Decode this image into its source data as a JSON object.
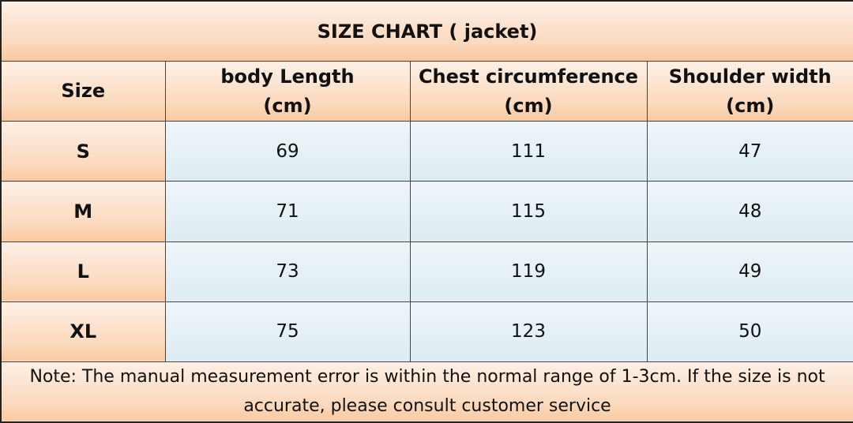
{
  "title": "SIZE CHART ( jacket)",
  "table": {
    "header": [
      {
        "name": "Size"
      },
      {
        "name": "body Length",
        "unit": "(cm)"
      },
      {
        "name": "Chest circumference",
        "unit": "(cm)"
      },
      {
        "name": "Shoulder width",
        "unit": "(cm)"
      }
    ],
    "rows": [
      [
        "S",
        69,
        111,
        47
      ],
      [
        "M",
        71,
        115,
        48
      ],
      [
        "L",
        73,
        119,
        49
      ],
      [
        "XL",
        75,
        123,
        50
      ]
    ]
  },
  "note": "Note: The manual measurement error is within the normal range of 1-3cm. If the size is not accurate, please consult customer service"
}
